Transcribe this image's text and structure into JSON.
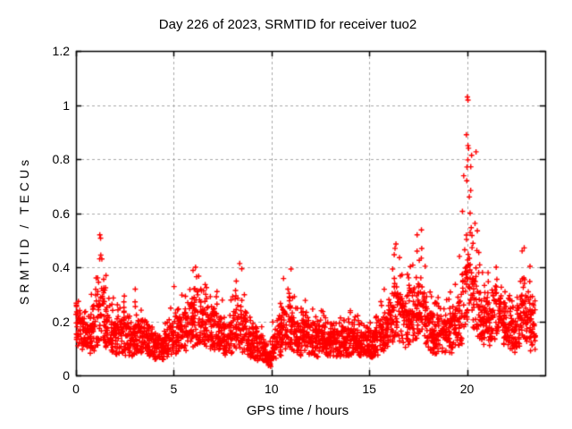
{
  "figure": {
    "background": "#ffffff",
    "border_color": "#000000",
    "text_color": "#000000"
  },
  "chart_data": {
    "type": "scatter",
    "title": "Day 226 of 2023, SRMTID for receiver tuo2",
    "xlabel": "GPS time / hours",
    "ylabel": "SRMTID / TECUs",
    "series_name": "SRMTID",
    "xlim": [
      0,
      24
    ],
    "ylim": [
      0,
      1.2
    ],
    "xticks": [
      0,
      5,
      10,
      15,
      20
    ],
    "xtick_labels": [
      "0",
      "5",
      "10",
      "15",
      "20"
    ],
    "yticks": [
      0,
      0.2,
      0.4,
      0.6,
      0.8,
      1.0,
      1.2
    ],
    "ytick_labels": [
      "0",
      "0.2",
      "0.4",
      "0.6",
      "0.8",
      "1",
      "1.2"
    ],
    "grid": {
      "visible": true,
      "style": "dashed",
      "color": "#a8a8a8"
    },
    "marker": {
      "shape": "plus",
      "color": "#ff0000",
      "size": 7
    },
    "data_start_hour": 0.0,
    "data_end_hour": 23.5,
    "bin_hours": 0.25,
    "points_per_bin": 30,
    "seed": 1234,
    "profile_note": "per-0.25h [median, max] envelope of SRMTID values read from the plot",
    "profile": [
      [
        0.16,
        0.27
      ],
      [
        0.15,
        0.24
      ],
      [
        0.13,
        0.22
      ],
      [
        0.15,
        0.3
      ],
      [
        0.2,
        0.45
      ],
      [
        0.22,
        0.53
      ],
      [
        0.18,
        0.38
      ],
      [
        0.15,
        0.3
      ],
      [
        0.14,
        0.25
      ],
      [
        0.15,
        0.3
      ],
      [
        0.13,
        0.22
      ],
      [
        0.12,
        0.2
      ],
      [
        0.14,
        0.33
      ],
      [
        0.13,
        0.25
      ],
      [
        0.12,
        0.2
      ],
      [
        0.11,
        0.18
      ],
      [
        0.1,
        0.16
      ],
      [
        0.09,
        0.15
      ],
      [
        0.11,
        0.2
      ],
      [
        0.13,
        0.25
      ],
      [
        0.14,
        0.33
      ],
      [
        0.15,
        0.3
      ],
      [
        0.16,
        0.3
      ],
      [
        0.18,
        0.4
      ],
      [
        0.2,
        0.42
      ],
      [
        0.2,
        0.38
      ],
      [
        0.18,
        0.35
      ],
      [
        0.16,
        0.3
      ],
      [
        0.17,
        0.32
      ],
      [
        0.15,
        0.28
      ],
      [
        0.13,
        0.22
      ],
      [
        0.14,
        0.28
      ],
      [
        0.16,
        0.35
      ],
      [
        0.18,
        0.42
      ],
      [
        0.15,
        0.3
      ],
      [
        0.12,
        0.22
      ],
      [
        0.11,
        0.2
      ],
      [
        0.1,
        0.18
      ],
      [
        0.08,
        0.15
      ],
      [
        0.06,
        0.13
      ],
      [
        0.1,
        0.2
      ],
      [
        0.13,
        0.28
      ],
      [
        0.17,
        0.37
      ],
      [
        0.18,
        0.4
      ],
      [
        0.15,
        0.3
      ],
      [
        0.13,
        0.25
      ],
      [
        0.14,
        0.28
      ],
      [
        0.13,
        0.24
      ],
      [
        0.13,
        0.25
      ],
      [
        0.12,
        0.22
      ],
      [
        0.13,
        0.24
      ],
      [
        0.12,
        0.22
      ],
      [
        0.12,
        0.2
      ],
      [
        0.11,
        0.2
      ],
      [
        0.12,
        0.22
      ],
      [
        0.12,
        0.2
      ],
      [
        0.13,
        0.24
      ],
      [
        0.12,
        0.22
      ],
      [
        0.11,
        0.2
      ],
      [
        0.11,
        0.18
      ],
      [
        0.11,
        0.2
      ],
      [
        0.12,
        0.22
      ],
      [
        0.14,
        0.28
      ],
      [
        0.16,
        0.32
      ],
      [
        0.18,
        0.4
      ],
      [
        0.22,
        0.5
      ],
      [
        0.2,
        0.45
      ],
      [
        0.18,
        0.38
      ],
      [
        0.2,
        0.42
      ],
      [
        0.22,
        0.48
      ],
      [
        0.24,
        0.57
      ],
      [
        0.2,
        0.42
      ],
      [
        0.16,
        0.32
      ],
      [
        0.14,
        0.28
      ],
      [
        0.15,
        0.3
      ],
      [
        0.14,
        0.28
      ],
      [
        0.15,
        0.32
      ],
      [
        0.16,
        0.35
      ],
      [
        0.2,
        0.45
      ],
      [
        0.28,
        0.75
      ],
      [
        0.32,
        1.08
      ],
      [
        0.3,
        0.88
      ],
      [
        0.24,
        0.55
      ],
      [
        0.2,
        0.4
      ],
      [
        0.2,
        0.38
      ],
      [
        0.22,
        0.4
      ],
      [
        0.2,
        0.36
      ],
      [
        0.18,
        0.32
      ],
      [
        0.16,
        0.3
      ],
      [
        0.15,
        0.28
      ],
      [
        0.18,
        0.35
      ],
      [
        0.22,
        0.49
      ],
      [
        0.2,
        0.42
      ],
      [
        0.15,
        0.3
      ]
    ],
    "outliers": [
      [
        1.22,
        0.52
      ],
      [
        1.27,
        0.445
      ],
      [
        16.32,
        0.47
      ],
      [
        17.45,
        0.52
      ],
      [
        19.97,
        0.89
      ],
      [
        20.02,
        1.03
      ],
      [
        20.05,
        0.85
      ],
      [
        20.08,
        0.84
      ],
      [
        19.99,
        0.72
      ],
      [
        20.12,
        0.66
      ],
      [
        20.16,
        0.6
      ],
      [
        22.82,
        0.46
      ]
    ]
  }
}
